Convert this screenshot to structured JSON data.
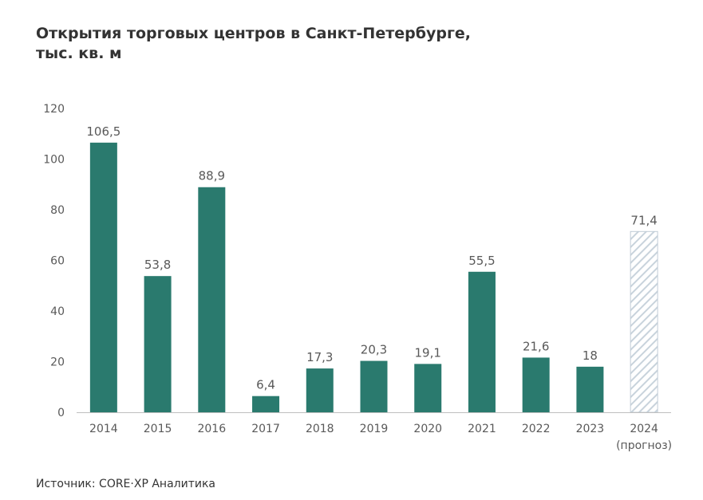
{
  "title_line1": "Открытия торговых центров в Санкт-Петербурге,",
  "title_line2": "тыс. кв. м",
  "source": "Источник: CORE·XP Аналитика",
  "colors": {
    "bar": "#2a7a6e",
    "forecast_stripe": "#c8d3dc",
    "forecast_border": "#c0ccd6",
    "axis": "#bfbfbf",
    "text": "#595959",
    "title": "#333333"
  },
  "chart_data": {
    "type": "bar",
    "title": "Открытия торговых центров в Санкт-Петербурге, тыс. кв. м",
    "categories": [
      "2014",
      "2015",
      "2016",
      "2017",
      "2018",
      "2019",
      "2020",
      "2021",
      "2022",
      "2023",
      "2024"
    ],
    "category_sublabels": [
      "",
      "",
      "",
      "",
      "",
      "",
      "",
      "",
      "",
      "",
      "(прогноз)"
    ],
    "values": [
      106.5,
      53.8,
      88.9,
      6.4,
      17.3,
      20.3,
      19.1,
      55.5,
      21.6,
      18,
      71.4
    ],
    "value_labels": [
      "106,5",
      "53,8",
      "88,9",
      "6,4",
      "17,3",
      "20,3",
      "19,1",
      "55,5",
      "21,6",
      "18",
      "71,4"
    ],
    "forecast": [
      false,
      false,
      false,
      false,
      false,
      false,
      false,
      false,
      false,
      false,
      true
    ],
    "ylim": [
      0,
      120
    ],
    "yticks": [
      0,
      20,
      40,
      60,
      80,
      100,
      120
    ],
    "xlabel": "",
    "ylabel": "",
    "grid": false,
    "legend": "none"
  }
}
